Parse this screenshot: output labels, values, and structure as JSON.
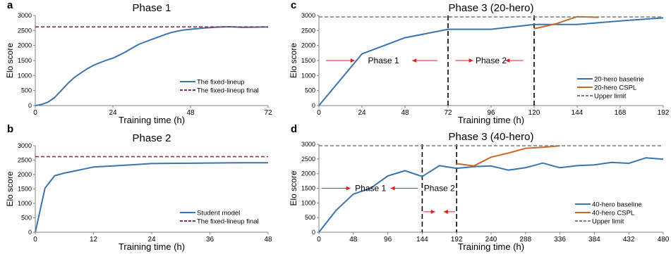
{
  "colors": {
    "blue": "#3A74B0",
    "orange": "#C8692A",
    "purple_dashed": "#8B2C5C",
    "gray_dashed": "#808080",
    "axis": "#7f7f7f",
    "arrow": "#E02020",
    "black": "#000000"
  },
  "chart_data": [
    {
      "id": "a",
      "panel_letter": "a",
      "type": "line",
      "title": "Phase 1",
      "xlabel": "Training time (h)",
      "ylabel": "Elo score",
      "xlim": [
        0,
        72
      ],
      "ylim": [
        0,
        3000
      ],
      "xticks": [
        0,
        24,
        48,
        72
      ],
      "yticks": [
        0,
        500,
        1000,
        1500,
        2000,
        2500,
        3000
      ],
      "legend_position": "bottom-right",
      "series": [
        {
          "name": "The fixed-lineup",
          "color": "blue",
          "style": "solid",
          "x": [
            0,
            2,
            4,
            6,
            8,
            10,
            12,
            14,
            16,
            18,
            20,
            22,
            24,
            26,
            28,
            30,
            32,
            34,
            36,
            38,
            40,
            42,
            44,
            46,
            48,
            50,
            52,
            54,
            56,
            58,
            60,
            62,
            64,
            66,
            68,
            70,
            72
          ],
          "y": [
            0,
            40,
            120,
            270,
            500,
            730,
            930,
            1080,
            1220,
            1340,
            1430,
            1510,
            1580,
            1680,
            1790,
            1920,
            2040,
            2120,
            2200,
            2280,
            2360,
            2430,
            2480,
            2520,
            2540,
            2560,
            2580,
            2595,
            2610,
            2620,
            2625,
            2615,
            2605,
            2608,
            2612,
            2615,
            2615
          ]
        },
        {
          "name": "The fixed-lineup final",
          "color": "purple_dashed",
          "style": "dashed",
          "x": [
            0,
            72
          ],
          "y": [
            2620,
            2620
          ]
        }
      ]
    },
    {
      "id": "b",
      "panel_letter": "b",
      "type": "line",
      "title": "Phase 2",
      "xlabel": "Training time (h)",
      "ylabel": "Elo score",
      "xlim": [
        0,
        48
      ],
      "ylim": [
        0,
        3000
      ],
      "xticks": [
        0,
        12,
        24,
        36,
        48
      ],
      "yticks": [
        0,
        500,
        1000,
        1500,
        2000,
        2500,
        3000
      ],
      "legend_position": "bottom-right",
      "series": [
        {
          "name": "Student model",
          "color": "blue",
          "style": "solid",
          "x": [
            0,
            2,
            4,
            6,
            8,
            10,
            12,
            16,
            20,
            24,
            30,
            36,
            42,
            48
          ],
          "y": [
            0,
            1530,
            1960,
            2050,
            2120,
            2190,
            2260,
            2300,
            2340,
            2380,
            2390,
            2400,
            2410,
            2410
          ]
        },
        {
          "name": "The fixed-lineup final",
          "color": "purple_dashed",
          "style": "dashed",
          "x": [
            0,
            48
          ],
          "y": [
            2620,
            2620
          ]
        }
      ]
    },
    {
      "id": "c",
      "panel_letter": "c",
      "type": "line",
      "title": "Phase 3 (20-hero)",
      "xlabel": "Training time (h)",
      "ylabel": "Elo score",
      "xlim": [
        0,
        192
      ],
      "ylim": [
        0,
        3000
      ],
      "xticks": [
        0,
        24,
        48,
        72,
        96,
        120,
        144,
        168,
        192
      ],
      "yticks": [
        0,
        500,
        1000,
        1500,
        2000,
        2500,
        3000
      ],
      "legend_position": "bottom-right",
      "series": [
        {
          "name": "20-hero baseline",
          "color": "blue",
          "style": "solid",
          "x": [
            0,
            24,
            48,
            72,
            96,
            120,
            144,
            168,
            192
          ],
          "y": [
            0,
            1720,
            2260,
            2540,
            2540,
            2700,
            2700,
            2820,
            2920
          ]
        },
        {
          "name": "20-hero CSPL",
          "color": "orange",
          "style": "solid",
          "x": [
            120,
            132,
            144,
            156
          ],
          "y": [
            2560,
            2720,
            2960,
            2940
          ]
        },
        {
          "name": "Upper limit",
          "color": "gray_dashed",
          "style": "dashed",
          "x": [
            0,
            192
          ],
          "y": [
            2950,
            2950
          ]
        }
      ],
      "vlines": [
        72,
        120
      ],
      "annotations": [
        {
          "text": "Phase 1",
          "x": 36,
          "y": 1500
        },
        {
          "text": "Phase 2",
          "x": 96,
          "y": 1500
        }
      ],
      "arrows": [
        {
          "from": 4,
          "to": 20,
          "y": 1500
        },
        {
          "from": 66,
          "to": 52,
          "y": 1500
        },
        {
          "from": 76,
          "to": 86,
          "y": 1500
        },
        {
          "from": 114,
          "to": 104,
          "y": 1500
        }
      ]
    },
    {
      "id": "d",
      "panel_letter": "d",
      "type": "line",
      "title": "Phase 3 (40-hero)",
      "xlabel": "Training time (h)",
      "ylabel": "Elo score",
      "xlim": [
        0,
        480
      ],
      "ylim": [
        0,
        3000
      ],
      "xticks": [
        0,
        48,
        96,
        144,
        192,
        240,
        288,
        336,
        384,
        432,
        480
      ],
      "yticks": [
        0,
        500,
        1000,
        1500,
        2000,
        2500,
        3000
      ],
      "legend_position": "bottom-right",
      "series": [
        {
          "name": "40-hero baseline",
          "color": "blue",
          "style": "solid",
          "x": [
            0,
            24,
            48,
            72,
            96,
            120,
            144,
            168,
            192,
            216,
            240,
            264,
            288,
            312,
            336,
            360,
            384,
            408,
            432,
            456,
            480
          ],
          "y": [
            0,
            750,
            1300,
            1500,
            1920,
            2100,
            1900,
            2270,
            2180,
            2240,
            2260,
            2120,
            2200,
            2360,
            2200,
            2270,
            2300,
            2380,
            2350,
            2540,
            2490
          ]
        },
        {
          "name": "40-hero CSPL",
          "color": "orange",
          "style": "solid",
          "x": [
            192,
            216,
            240,
            264,
            288,
            312,
            336
          ],
          "y": [
            2340,
            2260,
            2560,
            2700,
            2860,
            2900,
            2950
          ]
        },
        {
          "name": "Upper limit",
          "color": "gray_dashed",
          "style": "dashed",
          "x": [
            0,
            480
          ],
          "y": [
            2950,
            2950
          ]
        }
      ],
      "vlines": [
        144,
        192
      ],
      "annotations": [
        {
          "text": "Phase 1",
          "x": 72,
          "y": 1500
        },
        {
          "text": "Phase 2",
          "x": 168,
          "y": 1500
        }
      ],
      "arrows": [
        {
          "from": 4,
          "to": 44,
          "y": 1500
        },
        {
          "from": 138,
          "to": 100,
          "y": 1500
        },
        {
          "from": 146,
          "to": 162,
          "y": 700
        },
        {
          "from": 190,
          "to": 174,
          "y": 700
        }
      ]
    }
  ]
}
